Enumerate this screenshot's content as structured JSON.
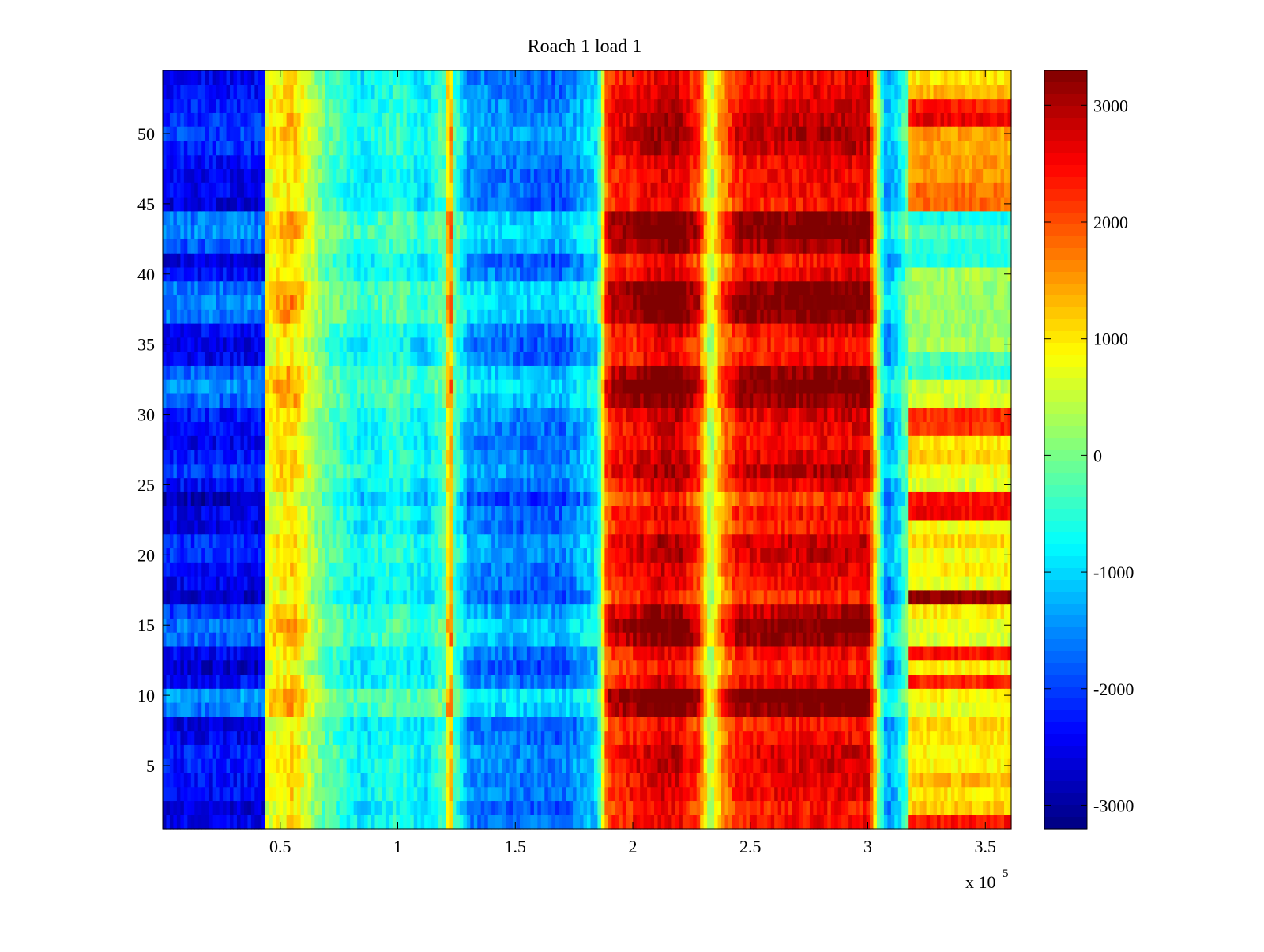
{
  "chart_data": {
    "type": "heatmap",
    "title": "Roach 1 load 1",
    "xlabel": "",
    "ylabel": "",
    "x_exponent_label": "x 10",
    "x_exponent_power": "5",
    "xlim": [
      0,
      3.61
    ],
    "ylim": [
      0.5,
      54.5
    ],
    "x_ticks": [
      0.5,
      1,
      1.5,
      2,
      2.5,
      3,
      3.5
    ],
    "x_tick_labels": [
      "0.5",
      "1",
      "1.5",
      "2",
      "2.5",
      "3",
      "3.5"
    ],
    "y_ticks": [
      5,
      10,
      15,
      20,
      25,
      30,
      35,
      40,
      45,
      50
    ],
    "y_tick_labels": [
      "5",
      "10",
      "15",
      "20",
      "25",
      "30",
      "35",
      "40",
      "45",
      "50"
    ],
    "rows": 54,
    "colorbar": {
      "colormap": "jet",
      "clim": [
        -3200,
        3300
      ],
      "ticks": [
        -3000,
        -2000,
        -1000,
        0,
        1000,
        2000,
        3000
      ],
      "tick_labels": [
        "-3000",
        "-2000",
        "-1000",
        "0",
        "1000",
        "2000",
        "3000"
      ]
    },
    "column_profile": {
      "x": [
        0,
        0.43,
        0.44,
        0.55,
        0.7,
        0.85,
        1.0,
        1.12,
        1.2,
        1.22,
        1.24,
        1.3,
        1.5,
        1.7,
        1.85,
        1.89,
        1.92,
        2.0,
        2.1,
        2.2,
        2.28,
        2.33,
        2.38,
        2.45,
        2.6,
        2.8,
        3.0,
        3.03,
        3.08,
        3.13,
        3.2,
        3.3,
        3.45,
        3.61
      ],
      "value": [
        -2500,
        -2500,
        700,
        1100,
        -200,
        -900,
        -500,
        -1000,
        -200,
        1900,
        -300,
        -1500,
        -1700,
        -1800,
        -1000,
        1900,
        2200,
        2300,
        2600,
        2600,
        2000,
        200,
        1500,
        2300,
        2400,
        2500,
        2500,
        1000,
        -1600,
        -1000,
        600,
        1000,
        1000,
        1000
      ]
    },
    "row_modulation": {
      "rows": [
        1,
        2,
        3,
        4,
        5,
        6,
        7,
        8,
        9,
        10,
        11,
        12,
        13,
        14,
        15,
        16,
        17,
        18,
        19,
        20,
        21,
        22,
        23,
        24,
        25,
        26,
        27,
        28,
        29,
        30,
        31,
        32,
        33,
        34,
        35,
        36,
        37,
        38,
        39,
        40,
        41,
        42,
        43,
        44,
        45,
        46,
        47,
        48,
        49,
        50,
        51,
        52,
        53,
        54
      ],
      "amount": [
        0.1,
        0.0,
        0.2,
        0.2,
        0.3,
        0.3,
        0.1,
        0.0,
        0.8,
        1.0,
        0.2,
        -0.1,
        0.1,
        0.7,
        0.8,
        0.5,
        -0.1,
        0.1,
        0.2,
        0.4,
        0.4,
        0.0,
        0.1,
        -0.2,
        0.2,
        0.5,
        0.3,
        0.1,
        0.2,
        0.3,
        0.7,
        0.9,
        0.7,
        0.1,
        0.0,
        0.2,
        0.8,
        0.9,
        0.8,
        0.2,
        0.0,
        0.6,
        0.9,
        0.8,
        0.0,
        0.1,
        0.1,
        0.2,
        0.4,
        0.5,
        0.4,
        0.3,
        0.2,
        0.1
      ]
    },
    "last_segment_rows": {
      "x_start": 3.17,
      "values": [
        2400,
        1200,
        1000,
        1300,
        900,
        900,
        1000,
        1100,
        700,
        900,
        2300,
        900,
        2400,
        600,
        700,
        1000,
        3200,
        700,
        1000,
        800,
        1100,
        800,
        2500,
        2400,
        600,
        800,
        1200,
        1000,
        2200,
        2200,
        600,
        500,
        -500,
        -300,
        300,
        200,
        200,
        200,
        200,
        300,
        -600,
        -500,
        -300,
        -700,
        1800,
        1800,
        1500,
        1500,
        1400,
        1500,
        2600,
        2300,
        1300,
        1000
      ]
    }
  }
}
